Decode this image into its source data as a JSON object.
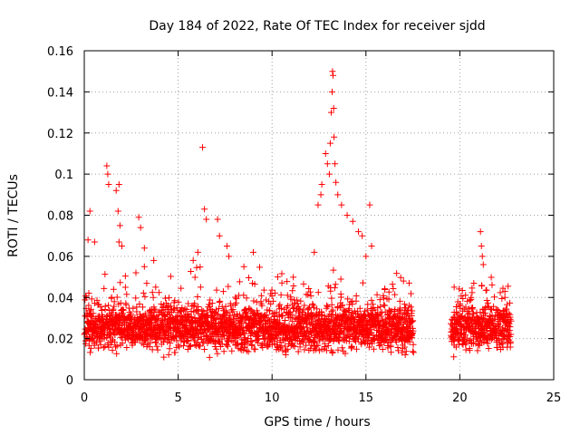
{
  "chart_data": {
    "type": "scatter",
    "title": "Day 184 of 2022, Rate Of TEC Index for receiver sjdd",
    "xlabel": "GPS time / hours",
    "ylabel": "ROTI / TECUs",
    "xlim": [
      0,
      25
    ],
    "ylim": [
      0,
      0.16
    ],
    "xticks": [
      0,
      5,
      10,
      15,
      20,
      25
    ],
    "yticks": [
      0,
      0.02,
      0.04,
      0.06,
      0.08,
      0.1,
      0.12,
      0.14,
      0.16
    ],
    "xtick_labels": [
      "0",
      "5",
      "10",
      "15",
      "20",
      "25"
    ],
    "ytick_labels": [
      "0",
      "0.02",
      "0.04",
      "0.06",
      "0.08",
      "0.1",
      "0.12",
      "0.14",
      "0.16"
    ],
    "grid": true,
    "marker": "plus",
    "color": "#ff0000",
    "series": [
      {
        "points": [
          [
            0.3,
            0.082
          ],
          [
            0.2,
            0.068
          ],
          [
            0.55,
            0.067
          ],
          [
            1.2,
            0.104
          ],
          [
            1.25,
            0.1
          ],
          [
            1.3,
            0.095
          ],
          [
            1.7,
            0.092
          ],
          [
            1.85,
            0.095
          ],
          [
            1.8,
            0.082
          ],
          [
            1.9,
            0.075
          ],
          [
            1.85,
            0.067
          ],
          [
            2.0,
            0.065
          ],
          [
            2.9,
            0.079
          ],
          [
            3.0,
            0.074
          ],
          [
            3.2,
            0.064
          ],
          [
            3.7,
            0.058
          ],
          [
            2.75,
            0.052
          ],
          [
            3.2,
            0.055
          ],
          [
            6.3,
            0.113
          ],
          [
            6.4,
            0.083
          ],
          [
            6.5,
            0.078
          ],
          [
            5.8,
            0.058
          ],
          [
            6.05,
            0.062
          ],
          [
            7.1,
            0.078
          ],
          [
            7.2,
            0.07
          ],
          [
            7.6,
            0.065
          ],
          [
            7.7,
            0.06
          ],
          [
            9.0,
            0.062
          ],
          [
            8.5,
            0.055
          ],
          [
            10.3,
            0.05
          ],
          [
            12.25,
            0.062
          ],
          [
            12.45,
            0.085
          ],
          [
            12.6,
            0.09
          ],
          [
            12.65,
            0.095
          ],
          [
            12.85,
            0.11
          ],
          [
            12.95,
            0.105
          ],
          [
            13.05,
            0.1
          ],
          [
            13.1,
            0.115
          ],
          [
            13.15,
            0.13
          ],
          [
            13.2,
            0.14
          ],
          [
            13.22,
            0.15
          ],
          [
            13.25,
            0.148
          ],
          [
            13.28,
            0.132
          ],
          [
            13.3,
            0.118
          ],
          [
            13.35,
            0.105
          ],
          [
            13.4,
            0.096
          ],
          [
            13.5,
            0.09
          ],
          [
            13.7,
            0.085
          ],
          [
            14.0,
            0.08
          ],
          [
            14.3,
            0.077
          ],
          [
            14.6,
            0.072
          ],
          [
            14.8,
            0.07
          ],
          [
            15.2,
            0.085
          ],
          [
            15.3,
            0.065
          ],
          [
            15.0,
            0.06
          ],
          [
            17.0,
            0.048
          ],
          [
            17.3,
            0.047
          ],
          [
            21.1,
            0.072
          ],
          [
            21.15,
            0.065
          ],
          [
            21.2,
            0.06
          ],
          [
            21.25,
            0.056
          ],
          [
            19.7,
            0.045
          ],
          [
            20.6,
            0.04
          ],
          [
            22.4,
            0.04
          ]
        ],
        "dense_band": {
          "segments": [
            [
              0,
              17.5
            ],
            [
              19.5,
              22.7
            ]
          ],
          "center": 0.025,
          "spread": 0.015,
          "min": 0.006
        }
      }
    ]
  }
}
